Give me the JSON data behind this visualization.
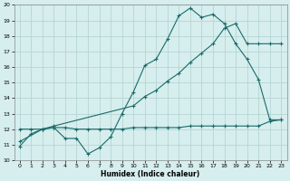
{
  "xlabel": "Humidex (Indice chaleur)",
  "xlim": [
    -0.5,
    23.5
  ],
  "ylim": [
    10,
    20
  ],
  "yticks": [
    10,
    11,
    12,
    13,
    14,
    15,
    16,
    17,
    18,
    19,
    20
  ],
  "xticks": [
    0,
    1,
    2,
    3,
    4,
    5,
    6,
    7,
    8,
    9,
    10,
    11,
    12,
    13,
    14,
    15,
    16,
    17,
    18,
    19,
    20,
    21,
    22,
    23
  ],
  "bg_color": "#d6eeed",
  "grid_color": "#b0d0d0",
  "line_color": "#1a6b6b",
  "line1_x": [
    0,
    1,
    2,
    3,
    4,
    5,
    6,
    7,
    8,
    9,
    10,
    11,
    12,
    13,
    14,
    15,
    16,
    17,
    18,
    19,
    20,
    21,
    22,
    23
  ],
  "line1_y": [
    10.9,
    11.7,
    12.0,
    12.1,
    11.4,
    11.4,
    10.4,
    10.8,
    11.5,
    13.0,
    14.4,
    16.1,
    16.5,
    17.8,
    19.3,
    19.8,
    19.2,
    19.4,
    18.8,
    17.5,
    16.5,
    15.2,
    12.6,
    12.6
  ],
  "line2_x": [
    0,
    2,
    3,
    10,
    11,
    12,
    13,
    14,
    15,
    16,
    17,
    18,
    19,
    20,
    21,
    22,
    23
  ],
  "line2_y": [
    11.2,
    12.0,
    12.2,
    13.5,
    14.1,
    14.5,
    15.1,
    15.6,
    16.3,
    16.9,
    17.5,
    18.5,
    18.8,
    17.5,
    17.5,
    17.5,
    17.5
  ],
  "line3_x": [
    0,
    1,
    2,
    3,
    4,
    5,
    6,
    7,
    8,
    9,
    10,
    11,
    12,
    13,
    14,
    15,
    16,
    17,
    18,
    19,
    20,
    21,
    22,
    23
  ],
  "line3_y": [
    12.0,
    12.0,
    12.0,
    12.1,
    12.1,
    12.0,
    12.0,
    12.0,
    12.0,
    12.0,
    12.1,
    12.1,
    12.1,
    12.1,
    12.1,
    12.2,
    12.2,
    12.2,
    12.2,
    12.2,
    12.2,
    12.2,
    12.5,
    12.6
  ]
}
